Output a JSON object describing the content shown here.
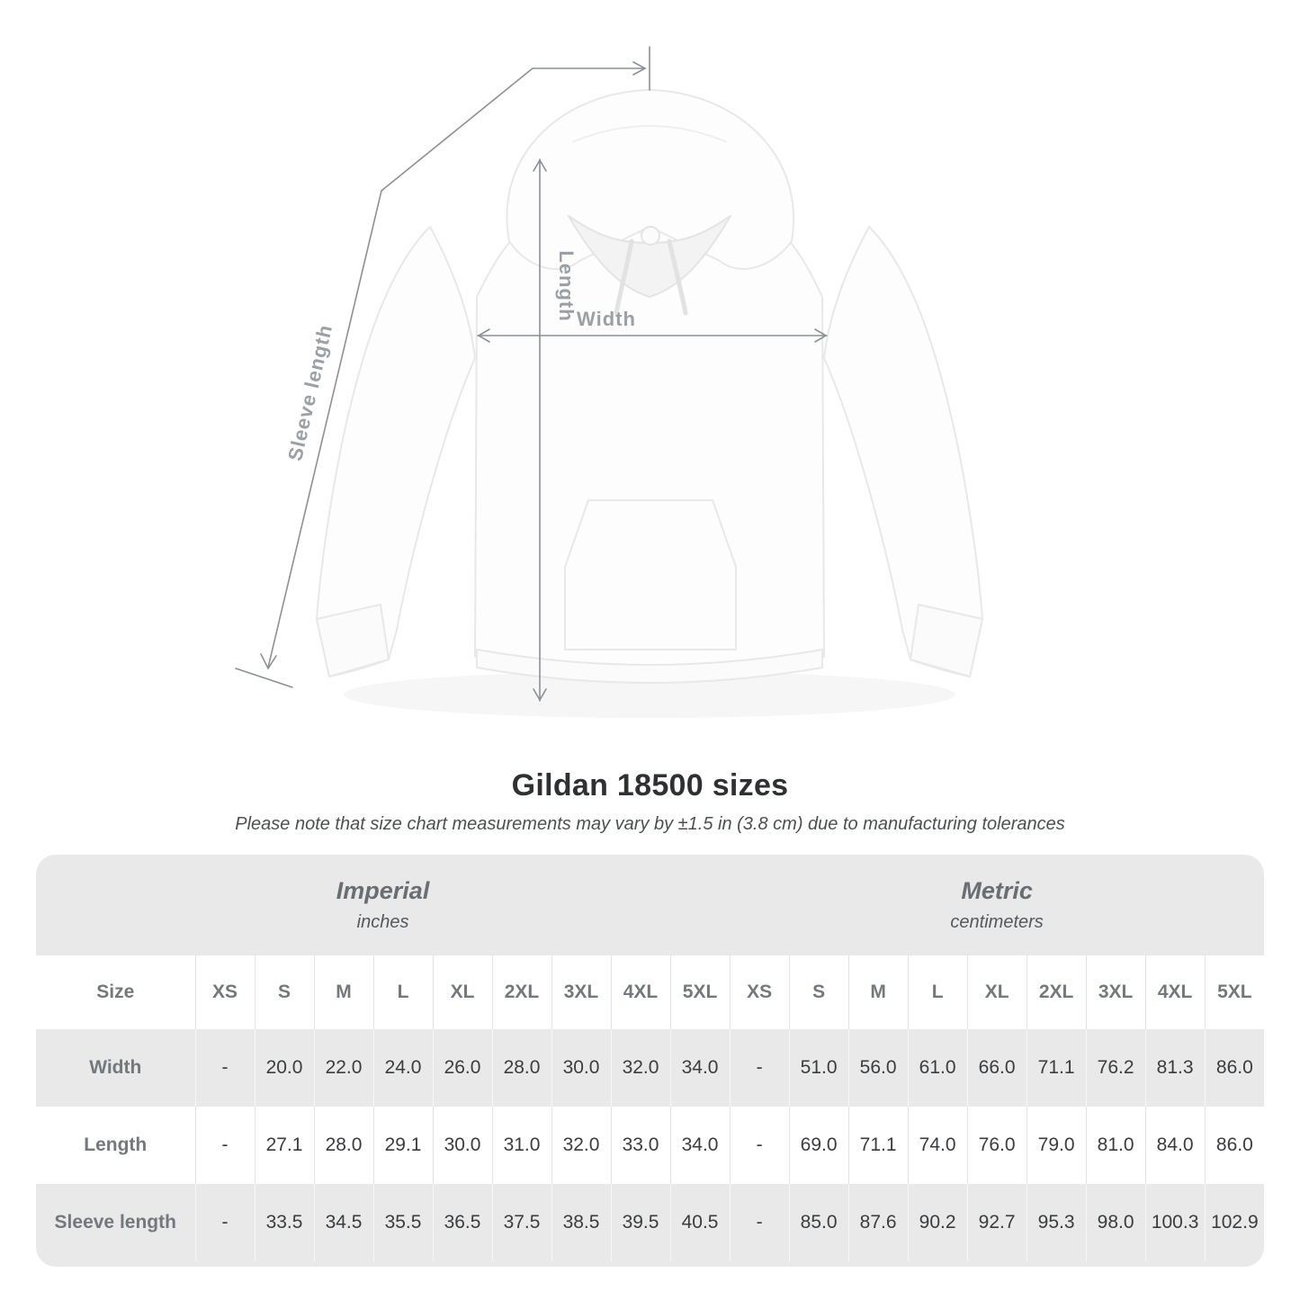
{
  "title": "Gildan 18500 sizes",
  "subtitle": "Please note that size chart measurements may vary by ±1.5 in (3.8 cm) due to manufacturing tolerances",
  "diagram": {
    "labels": {
      "length": "Length",
      "width": "Width",
      "sleeve": "Sleeve length"
    },
    "colors": {
      "measure_line": "#8c9095",
      "measure_label": "#9aa0a5",
      "garment_outline": "#e8e8e8",
      "garment_fill": "#fdfdfd"
    }
  },
  "table": {
    "size_header": "Size",
    "groups": [
      {
        "label": "Imperial",
        "sub": "inches"
      },
      {
        "label": "Metric",
        "sub": "centimeters"
      }
    ],
    "sizes": [
      "XS",
      "S",
      "M",
      "L",
      "XL",
      "2XL",
      "3XL",
      "4XL",
      "5XL"
    ],
    "rows": [
      {
        "label": "Width",
        "imperial": [
          "-",
          "20.0",
          "22.0",
          "24.0",
          "26.0",
          "28.0",
          "30.0",
          "32.0",
          "34.0"
        ],
        "metric": [
          "-",
          "51.0",
          "56.0",
          "61.0",
          "66.0",
          "71.1",
          "76.2",
          "81.3",
          "86.0"
        ]
      },
      {
        "label": "Length",
        "imperial": [
          "-",
          "27.1",
          "28.0",
          "29.1",
          "30.0",
          "31.0",
          "32.0",
          "33.0",
          "34.0"
        ],
        "metric": [
          "-",
          "69.0",
          "71.1",
          "74.0",
          "76.0",
          "79.0",
          "81.0",
          "84.0",
          "86.0"
        ]
      },
      {
        "label": "Sleeve length",
        "imperial": [
          "-",
          "33.5",
          "34.5",
          "35.5",
          "36.5",
          "37.5",
          "38.5",
          "39.5",
          "40.5"
        ],
        "metric": [
          "-",
          "85.0",
          "87.6",
          "90.2",
          "92.7",
          "95.3",
          "98.0",
          "100.3",
          "102.9"
        ]
      }
    ],
    "colors": {
      "card_background": "#e9e9e9",
      "header_text": "#74787d",
      "value_text": "#3a3c3e"
    }
  }
}
